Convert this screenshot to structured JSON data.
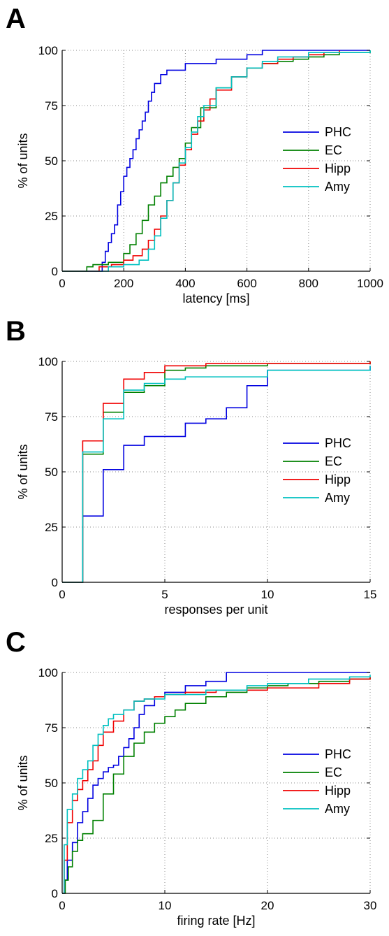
{
  "colors": {
    "PHC": "#0000e0",
    "EC": "#008000",
    "Hipp": "#f00000",
    "Amy": "#00c0c0",
    "grid": "#888888",
    "axis": "#000000"
  },
  "chart_data": [
    {
      "type": "line",
      "step": true,
      "panel_label": "A",
      "title": "",
      "xlabel": "latency [ms]",
      "ylabel": "% of units",
      "xlim": [
        0,
        1000
      ],
      "ylim": [
        0,
        100
      ],
      "xticks": [
        0,
        200,
        400,
        600,
        800,
        1000
      ],
      "yticks": [
        0,
        25,
        50,
        75,
        100
      ],
      "grid": true,
      "legend_position": "right",
      "series": [
        {
          "name": "PHC",
          "color_key": "PHC",
          "x": [
            0,
            120,
            130,
            140,
            150,
            160,
            170,
            180,
            190,
            200,
            210,
            220,
            230,
            240,
            250,
            260,
            270,
            280,
            290,
            300,
            320,
            340,
            360,
            400,
            450,
            500,
            550,
            600,
            650,
            1000
          ],
          "y": [
            0,
            0,
            4,
            9,
            13,
            17,
            21,
            30,
            36,
            43,
            47,
            51,
            55,
            60,
            64,
            68,
            72,
            77,
            81,
            85,
            89,
            91,
            91,
            94,
            94,
            96,
            96,
            98,
            100,
            100
          ]
        },
        {
          "name": "EC",
          "color_key": "EC",
          "x": [
            0,
            60,
            80,
            100,
            150,
            200,
            220,
            240,
            260,
            280,
            300,
            320,
            340,
            360,
            380,
            400,
            420,
            450,
            500,
            550,
            600,
            650,
            700,
            750,
            800,
            850,
            900,
            1000
          ],
          "y": [
            0,
            0,
            2,
            3,
            4,
            8,
            12,
            17,
            23,
            30,
            34,
            40,
            43,
            47,
            51,
            58,
            65,
            74,
            83,
            88,
            92,
            94,
            95,
            96,
            97,
            98,
            99,
            100
          ]
        },
        {
          "name": "Hipp",
          "color_key": "Hipp",
          "x": [
            0,
            80,
            120,
            160,
            200,
            230,
            260,
            280,
            300,
            320,
            340,
            360,
            380,
            400,
            420,
            440,
            460,
            480,
            500,
            550,
            600,
            650,
            700,
            750,
            800,
            850,
            900
          ],
          "y": [
            0,
            0,
            2,
            3,
            5,
            7,
            10,
            14,
            19,
            25,
            32,
            40,
            48,
            55,
            62,
            68,
            73,
            78,
            82,
            88,
            92,
            94,
            96,
            97,
            98,
            99,
            100
          ]
        },
        {
          "name": "Amy",
          "color_key": "Amy",
          "x": [
            0,
            110,
            150,
            200,
            250,
            280,
            300,
            320,
            340,
            360,
            380,
            400,
            420,
            440,
            460,
            500,
            550,
            600,
            650,
            700,
            800,
            1000
          ],
          "y": [
            0,
            0,
            2,
            3,
            5,
            10,
            16,
            24,
            32,
            40,
            49,
            56,
            63,
            70,
            75,
            83,
            88,
            92,
            95,
            97,
            99,
            100
          ]
        }
      ]
    },
    {
      "type": "line",
      "step": true,
      "panel_label": "B",
      "title": "",
      "xlabel": "responses per unit",
      "ylabel": "% of units",
      "xlim": [
        0,
        15
      ],
      "ylim": [
        0,
        100
      ],
      "xticks": [
        0,
        5,
        10,
        15
      ],
      "yticks": [
        0,
        25,
        50,
        75,
        100
      ],
      "grid": true,
      "legend_position": "right",
      "series": [
        {
          "name": "PHC",
          "color_key": "PHC",
          "x": [
            0,
            1,
            2,
            3,
            4,
            5,
            6,
            7,
            8,
            9,
            10,
            15
          ],
          "y": [
            0,
            30,
            51,
            62,
            66,
            66,
            72,
            74,
            79,
            89,
            96,
            98
          ]
        },
        {
          "name": "EC",
          "color_key": "EC",
          "x": [
            0,
            1,
            2,
            3,
            4,
            5,
            6,
            7,
            8,
            10,
            12,
            15
          ],
          "y": [
            0,
            58,
            77,
            86,
            89,
            96,
            97,
            98,
            98,
            99,
            99,
            100
          ]
        },
        {
          "name": "Hipp",
          "color_key": "Hipp",
          "x": [
            0,
            1,
            2,
            3,
            4,
            5,
            6,
            7,
            8,
            10,
            12,
            15
          ],
          "y": [
            0,
            64,
            81,
            92,
            95,
            98,
            98,
            99,
            99,
            99,
            99,
            100
          ]
        },
        {
          "name": "Amy",
          "color_key": "Amy",
          "x": [
            0,
            1,
            2,
            3,
            4,
            5,
            6,
            10,
            12,
            15
          ],
          "y": [
            0,
            59,
            74,
            87,
            90,
            92,
            93,
            96,
            96,
            98
          ]
        }
      ]
    },
    {
      "type": "line",
      "step": true,
      "panel_label": "C",
      "title": "",
      "xlabel": "firing rate [Hz]",
      "ylabel": "% of units",
      "xlim": [
        0,
        30
      ],
      "ylim": [
        0,
        100
      ],
      "xticks": [
        0,
        10,
        20,
        30
      ],
      "yticks": [
        0,
        25,
        50,
        75,
        100
      ],
      "grid": true,
      "legend_position": "right",
      "series": [
        {
          "name": "PHC",
          "color_key": "PHC",
          "x": [
            0,
            0.2,
            0.5,
            1,
            1.5,
            2,
            2.5,
            3,
            3.5,
            4,
            4.5,
            5,
            5.5,
            6,
            6.5,
            7,
            7.5,
            8,
            9,
            10,
            12,
            14,
            16,
            20,
            30
          ],
          "y": [
            0,
            6,
            15,
            23,
            32,
            37,
            43,
            49,
            52,
            55,
            57,
            58,
            62,
            66,
            70,
            75,
            81,
            85,
            89,
            91,
            94,
            96,
            100,
            100,
            100
          ]
        },
        {
          "name": "EC",
          "color_key": "EC",
          "x": [
            0,
            0.3,
            0.6,
            1,
            1.5,
            2,
            3,
            4,
            5,
            6,
            7,
            8,
            9,
            10,
            11,
            12,
            14,
            16,
            18,
            20,
            22,
            25,
            28,
            30
          ],
          "y": [
            0,
            6,
            12,
            19,
            24,
            27,
            33,
            45,
            54,
            62,
            68,
            73,
            77,
            80,
            83,
            86,
            89,
            91,
            93,
            94,
            95,
            96,
            97,
            98
          ]
        },
        {
          "name": "Hipp",
          "color_key": "Hipp",
          "x": [
            0,
            0.2,
            0.5,
            1,
            1.5,
            2,
            2.5,
            3,
            3.5,
            4,
            5,
            6,
            7,
            8,
            9,
            10,
            12,
            15,
            20,
            22,
            25,
            28,
            30
          ],
          "y": [
            0,
            15,
            32,
            42,
            47,
            51,
            56,
            60,
            67,
            73,
            78,
            83,
            87,
            88,
            89,
            90,
            91,
            92,
            93,
            93,
            95,
            97,
            98
          ]
        },
        {
          "name": "Amy",
          "color_key": "Amy",
          "x": [
            0,
            0.2,
            0.5,
            1,
            1.5,
            2,
            2.5,
            3,
            3.5,
            4,
            4.5,
            5,
            6,
            7,
            8,
            10,
            14,
            18,
            20,
            24,
            28,
            30
          ],
          "y": [
            0,
            22,
            38,
            45,
            52,
            56,
            60,
            67,
            72,
            76,
            79,
            81,
            83,
            87,
            88,
            90,
            92,
            94,
            95,
            97,
            98,
            99
          ]
        }
      ]
    }
  ]
}
